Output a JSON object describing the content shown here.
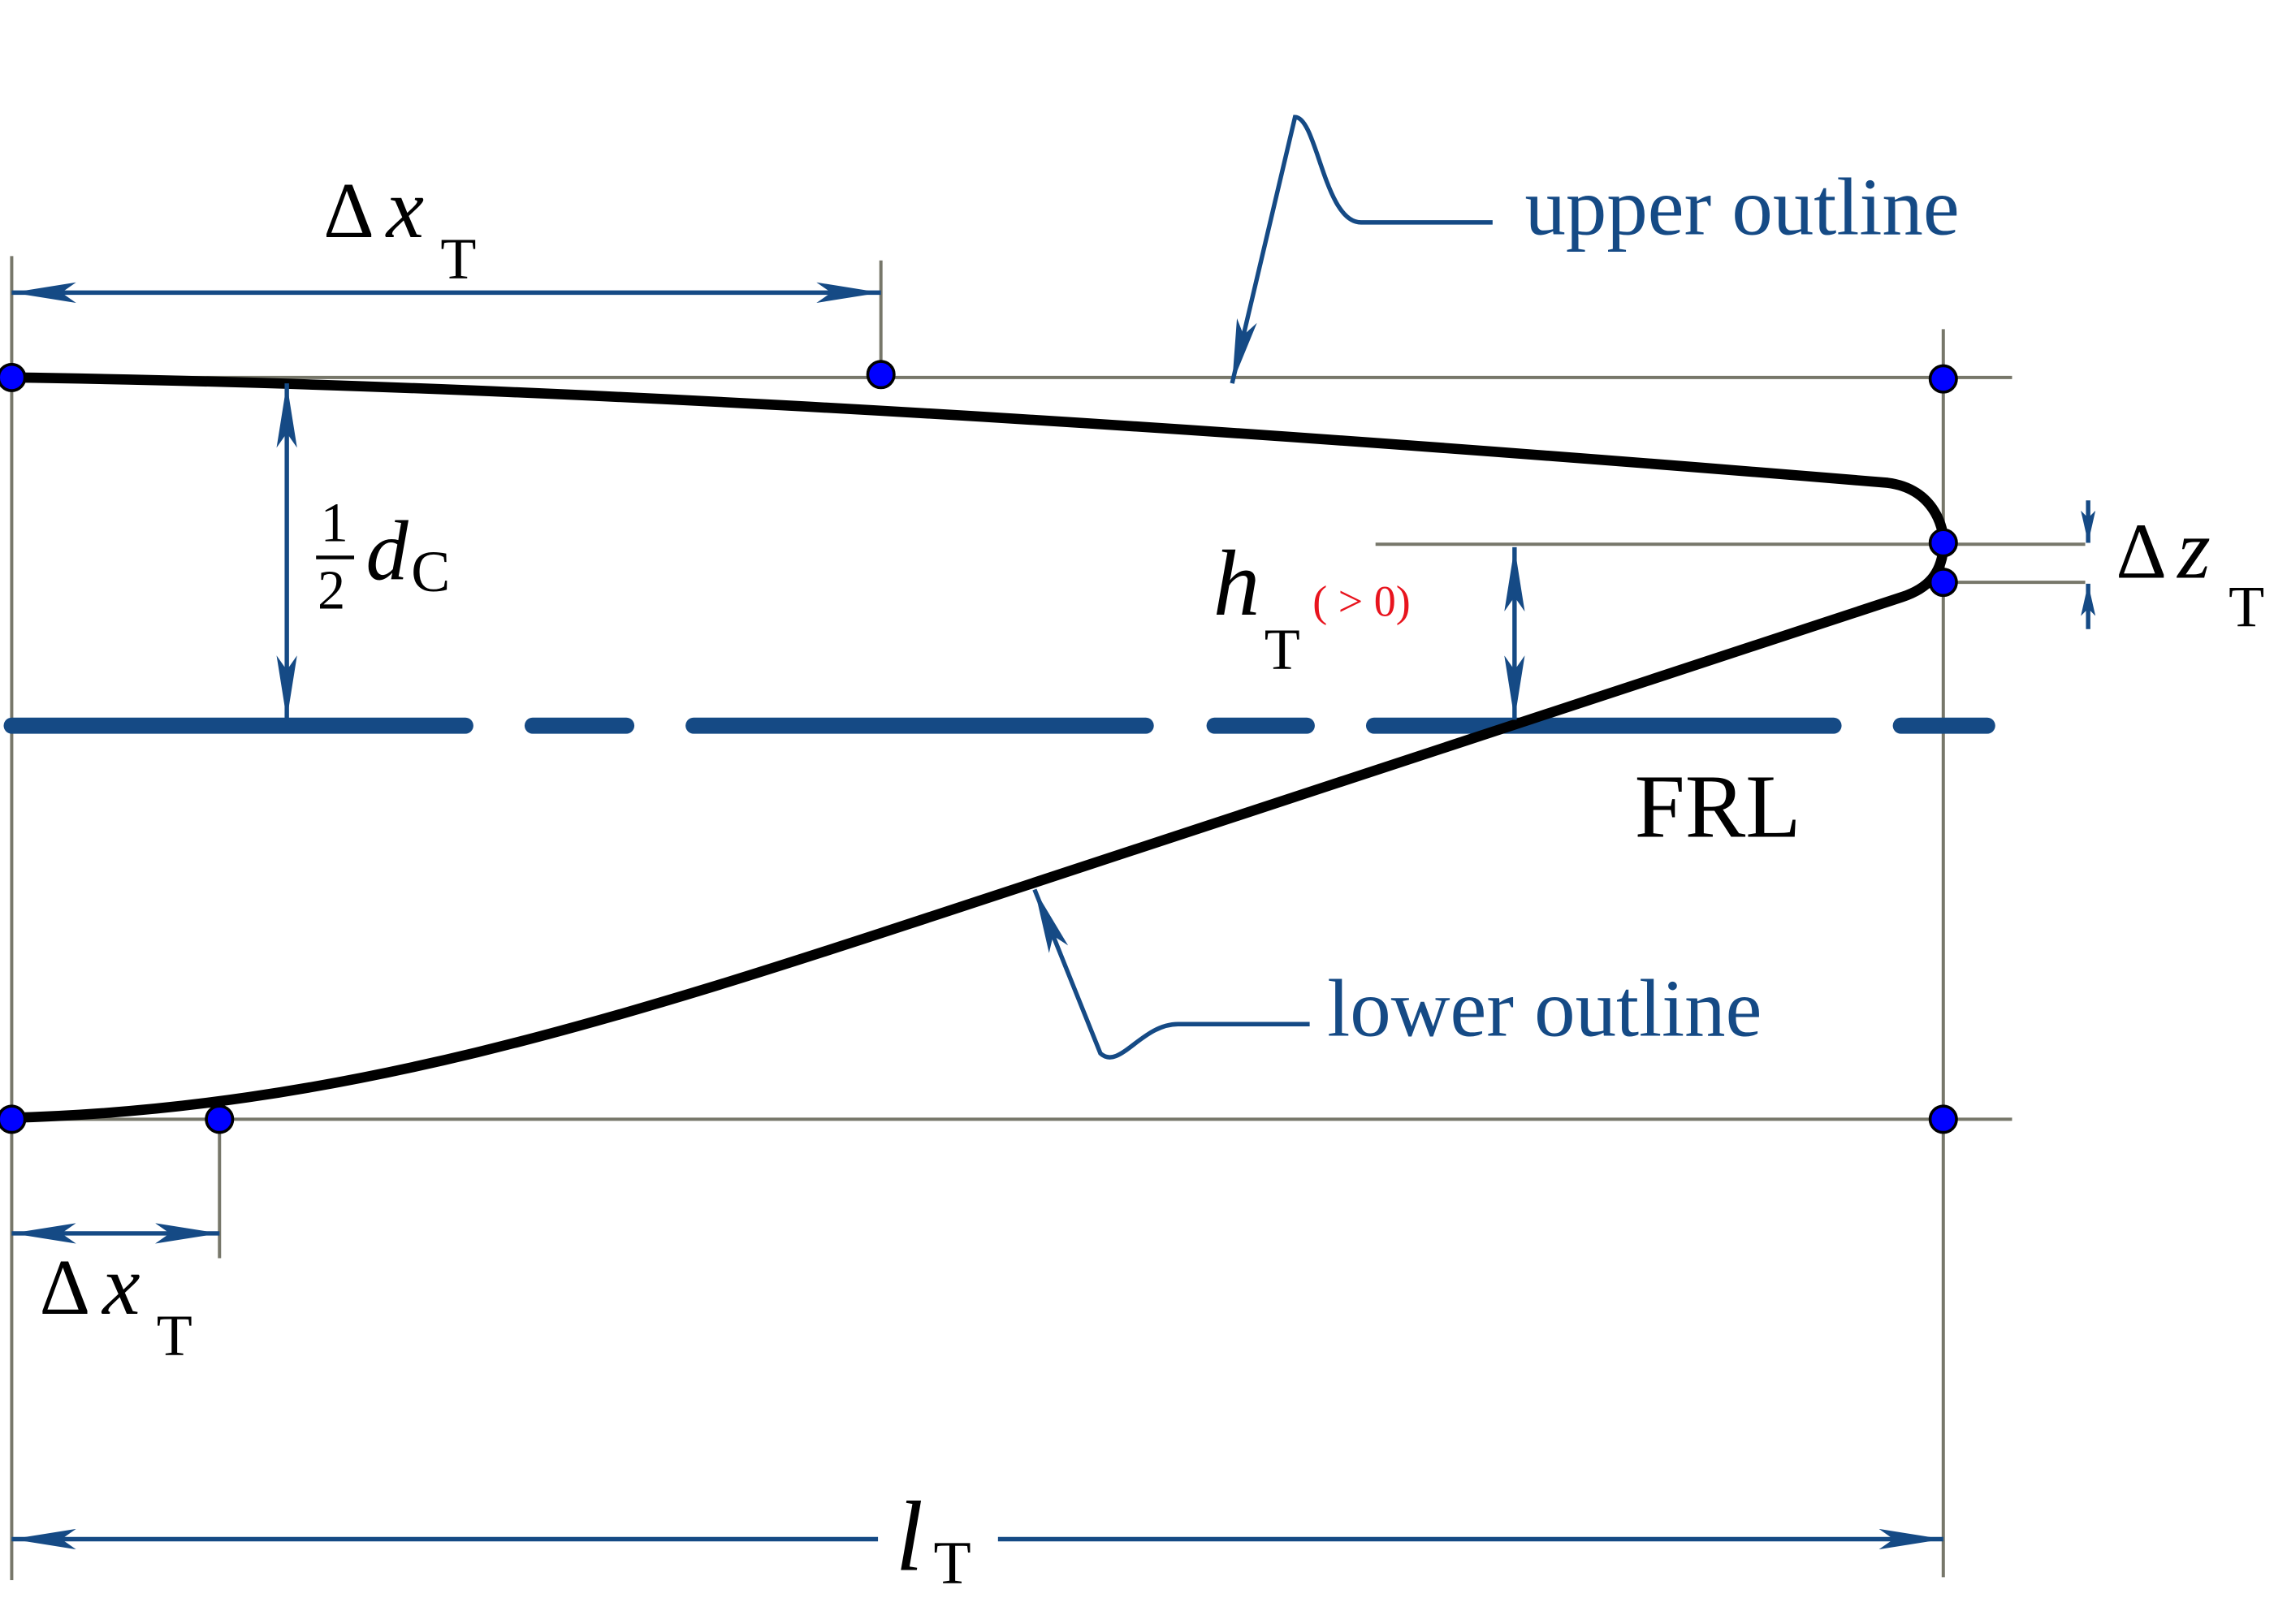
{
  "labels": {
    "dx_top": {
      "delta": "Δ",
      "var": "x",
      "sub": "T"
    },
    "upper_outline": "upper outline",
    "half_dc": {
      "num": "1",
      "den": "2",
      "var": "d",
      "sub": "C"
    },
    "h_t": {
      "var": "h",
      "sub": "T",
      "note": "( > 0)"
    },
    "dz": {
      "delta": "Δ",
      "var": "z",
      "sub": "T"
    },
    "frl": "FRL",
    "lower_outline": "lower outline",
    "dx_bottom": {
      "delta": "Δ",
      "var": "x",
      "sub": "T"
    },
    "l_t": {
      "var": "l",
      "sub": "T"
    }
  },
  "colors": {
    "annotation": "#154a85",
    "outline": "#000000",
    "guide": "#77776a",
    "point": "#0000ff",
    "note": "#e8141e"
  }
}
